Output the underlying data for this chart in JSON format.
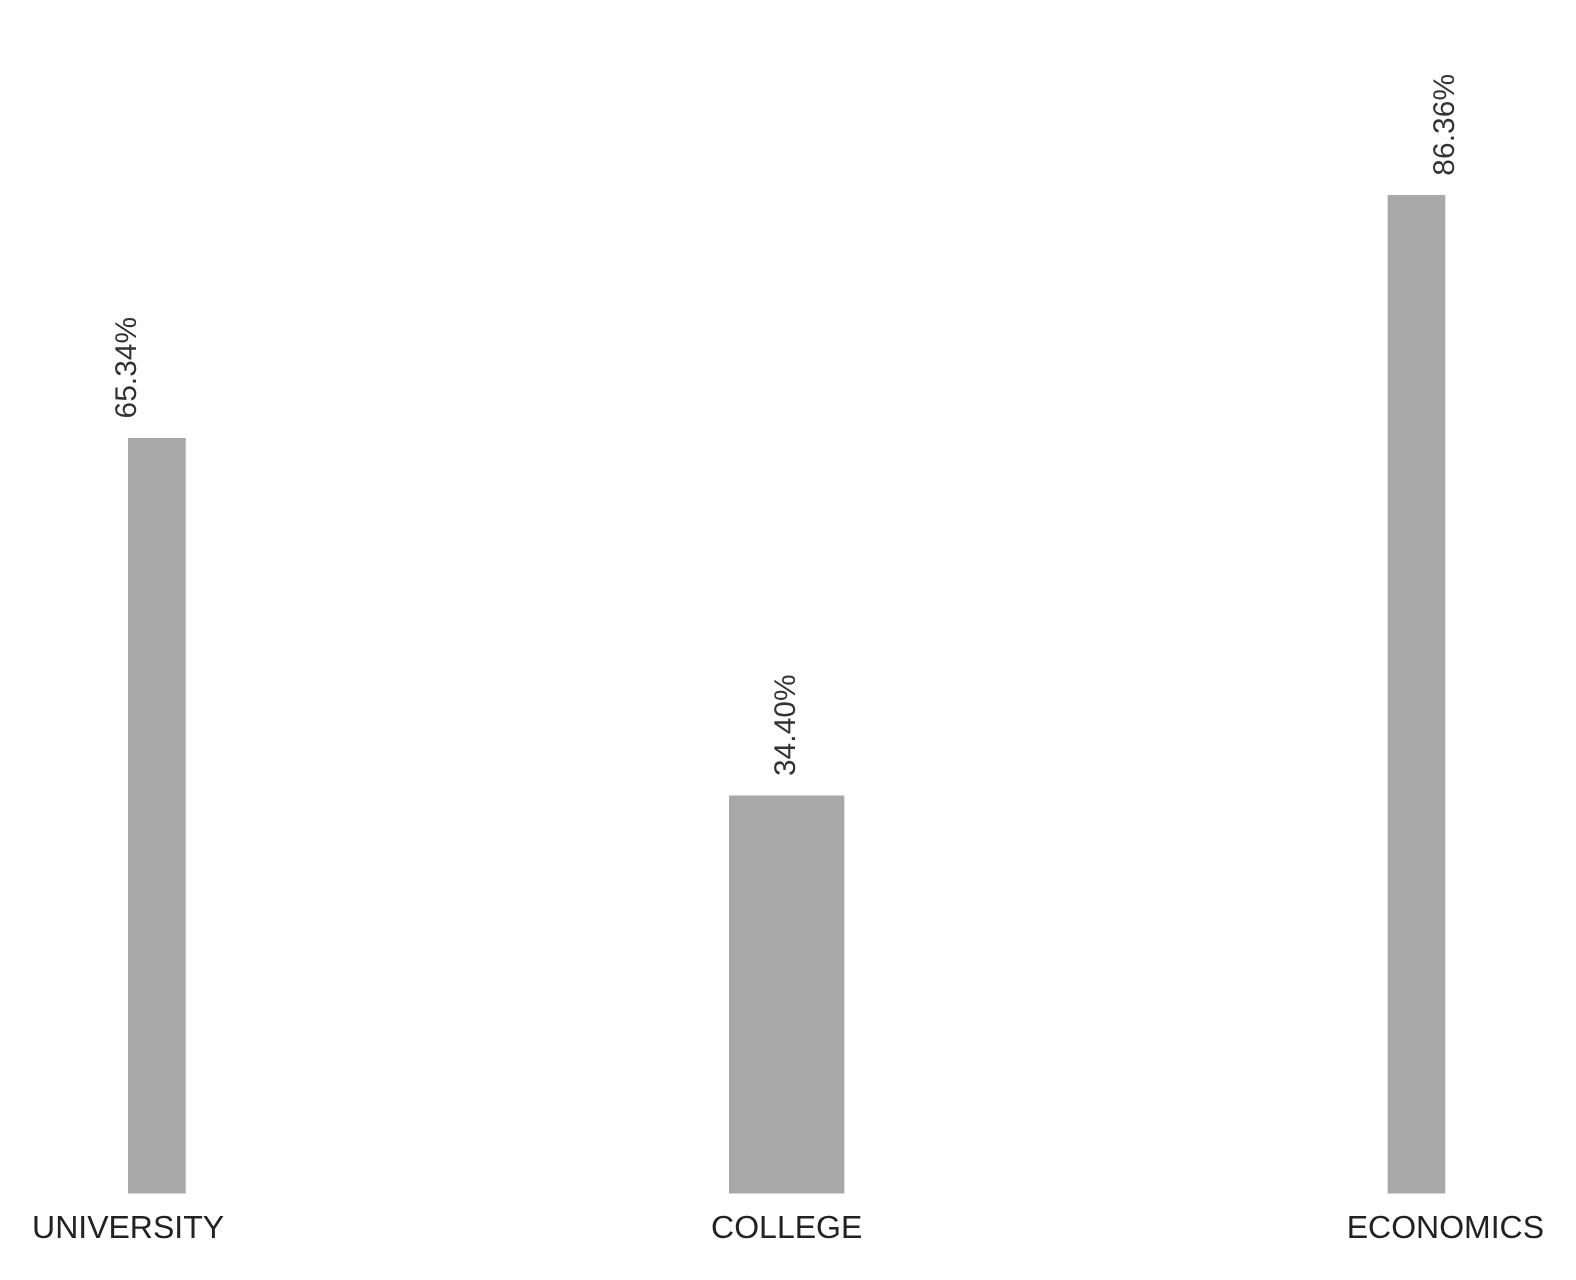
{
  "chart_data": {
    "type": "bar",
    "categories": [
      "UNIVERSITY",
      "COLLEGE",
      "ECONOMICS"
    ],
    "values": [
      65.34,
      34.4,
      86.36
    ],
    "value_labels": [
      "65.34%",
      "34.40%",
      "86.36%"
    ],
    "color": "#a8a8a8",
    "grid": false,
    "legend": false
  }
}
